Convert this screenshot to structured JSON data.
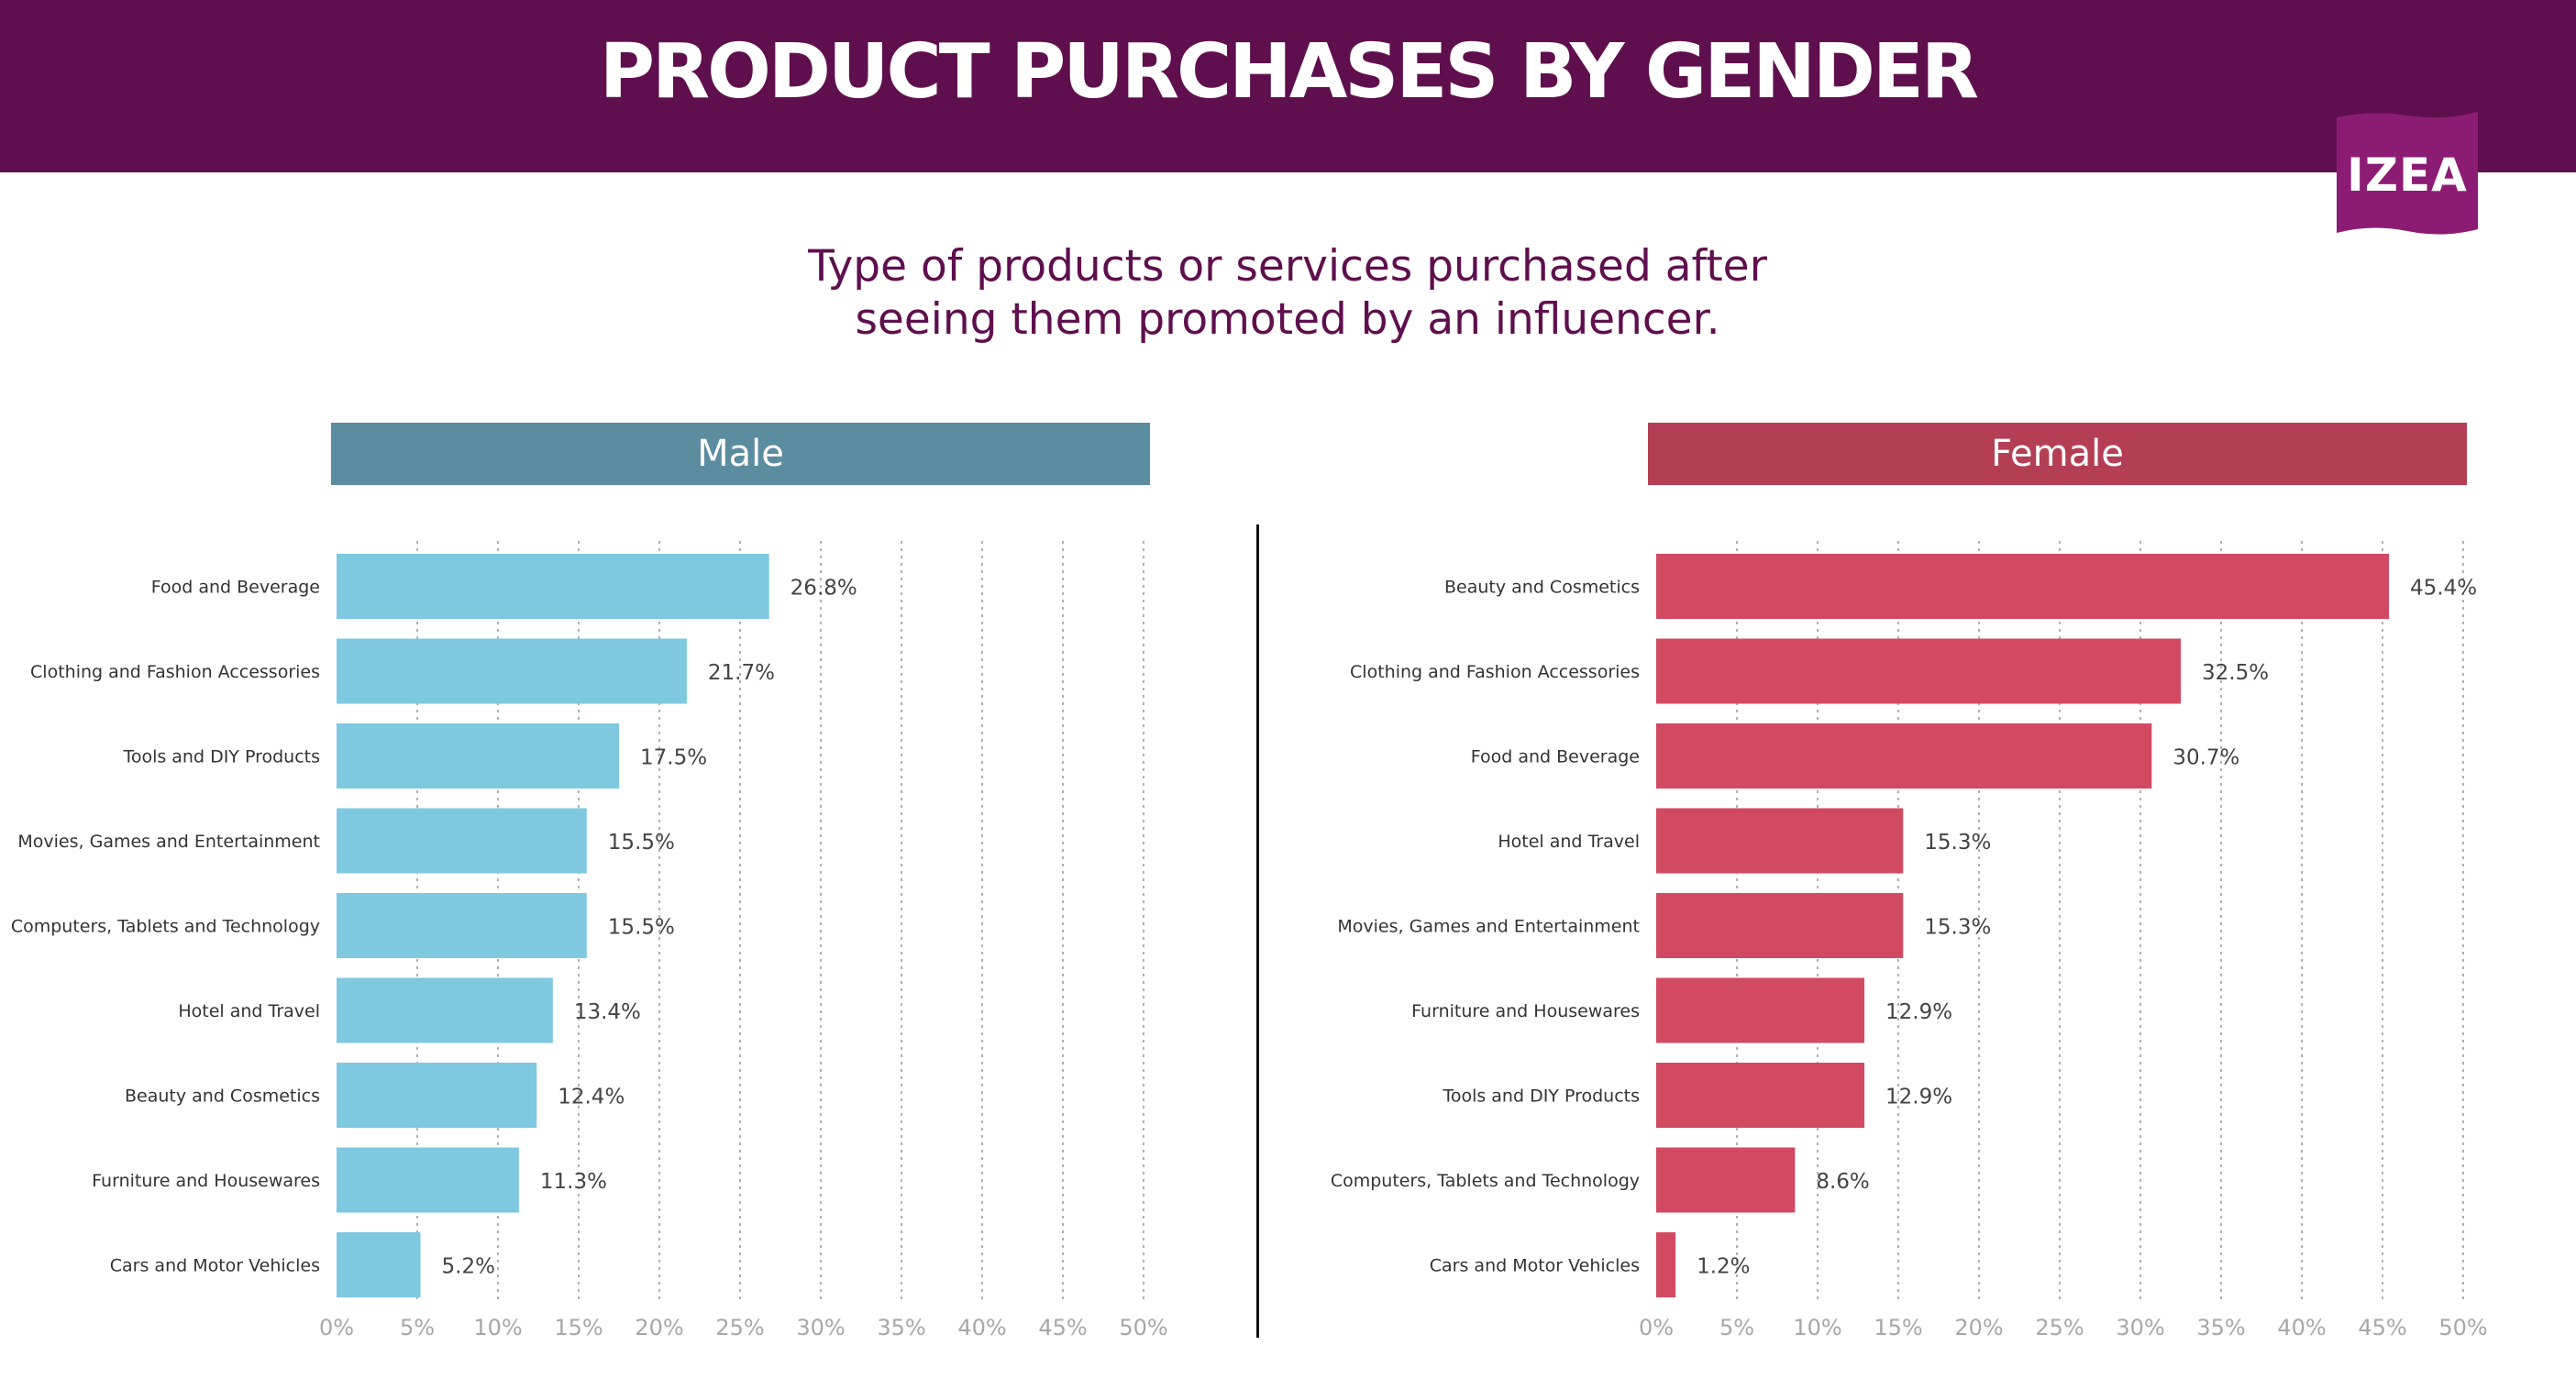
{
  "title": "PRODUCT PURCHASES BY GENDER",
  "subtitle_line1": "Type of products or services purchased after",
  "subtitle_line2": "seeing them promoted by an influencer.",
  "logo_text": "IZEA",
  "colors": {
    "banner": "#5f0f4e",
    "male_header": "#5b8ca0",
    "female_header": "#b43e54",
    "male_bar": "#7ec8e0",
    "female_bar": "#d14a62",
    "logo": "#8c1c73"
  },
  "chart_data": [
    {
      "type": "bar",
      "orientation": "horizontal",
      "title": "Male",
      "categories": [
        "Food and Beverage",
        "Clothing and Fashion Accessories",
        "Tools and DIY Products",
        "Movies, Games and Entertainment",
        "Computers, Tablets and Technology",
        "Hotel and Travel",
        "Beauty and Cosmetics",
        "Furniture and Housewares",
        "Cars and Motor Vehicles"
      ],
      "values": [
        26.8,
        21.7,
        17.5,
        15.5,
        15.5,
        13.4,
        12.4,
        11.3,
        5.2
      ],
      "value_labels": [
        "26.8%",
        "21.7%",
        "17.5%",
        "15.5%",
        "15.5%",
        "13.4%",
        "12.4%",
        "11.3%",
        "5.2%"
      ],
      "xlim": [
        0,
        50
      ],
      "xticks": [
        "0%",
        "5%",
        "10%",
        "15%",
        "20%",
        "25%",
        "30%",
        "35%",
        "40%",
        "45%",
        "50%"
      ],
      "grid": "vertical-dotted"
    },
    {
      "type": "bar",
      "orientation": "horizontal",
      "title": "Female",
      "categories": [
        "Beauty and Cosmetics",
        "Clothing and Fashion Accessories",
        "Food and Beverage",
        "Hotel and Travel",
        "Movies, Games and Entertainment",
        "Furniture and Housewares",
        "Tools and DIY Products",
        "Computers, Tablets and Technology",
        "Cars and Motor Vehicles"
      ],
      "values": [
        45.4,
        32.5,
        30.7,
        15.3,
        15.3,
        12.9,
        12.9,
        8.6,
        1.2
      ],
      "value_labels": [
        "45.4%",
        "32.5%",
        "30.7%",
        "15.3%",
        "15.3%",
        "12.9%",
        "12.9%",
        "8.6%",
        "1.2%"
      ],
      "xlim": [
        0,
        50
      ],
      "xticks": [
        "0%",
        "5%",
        "10%",
        "15%",
        "20%",
        "25%",
        "30%",
        "35%",
        "40%",
        "45%",
        "50%"
      ],
      "grid": "vertical-dotted"
    }
  ]
}
